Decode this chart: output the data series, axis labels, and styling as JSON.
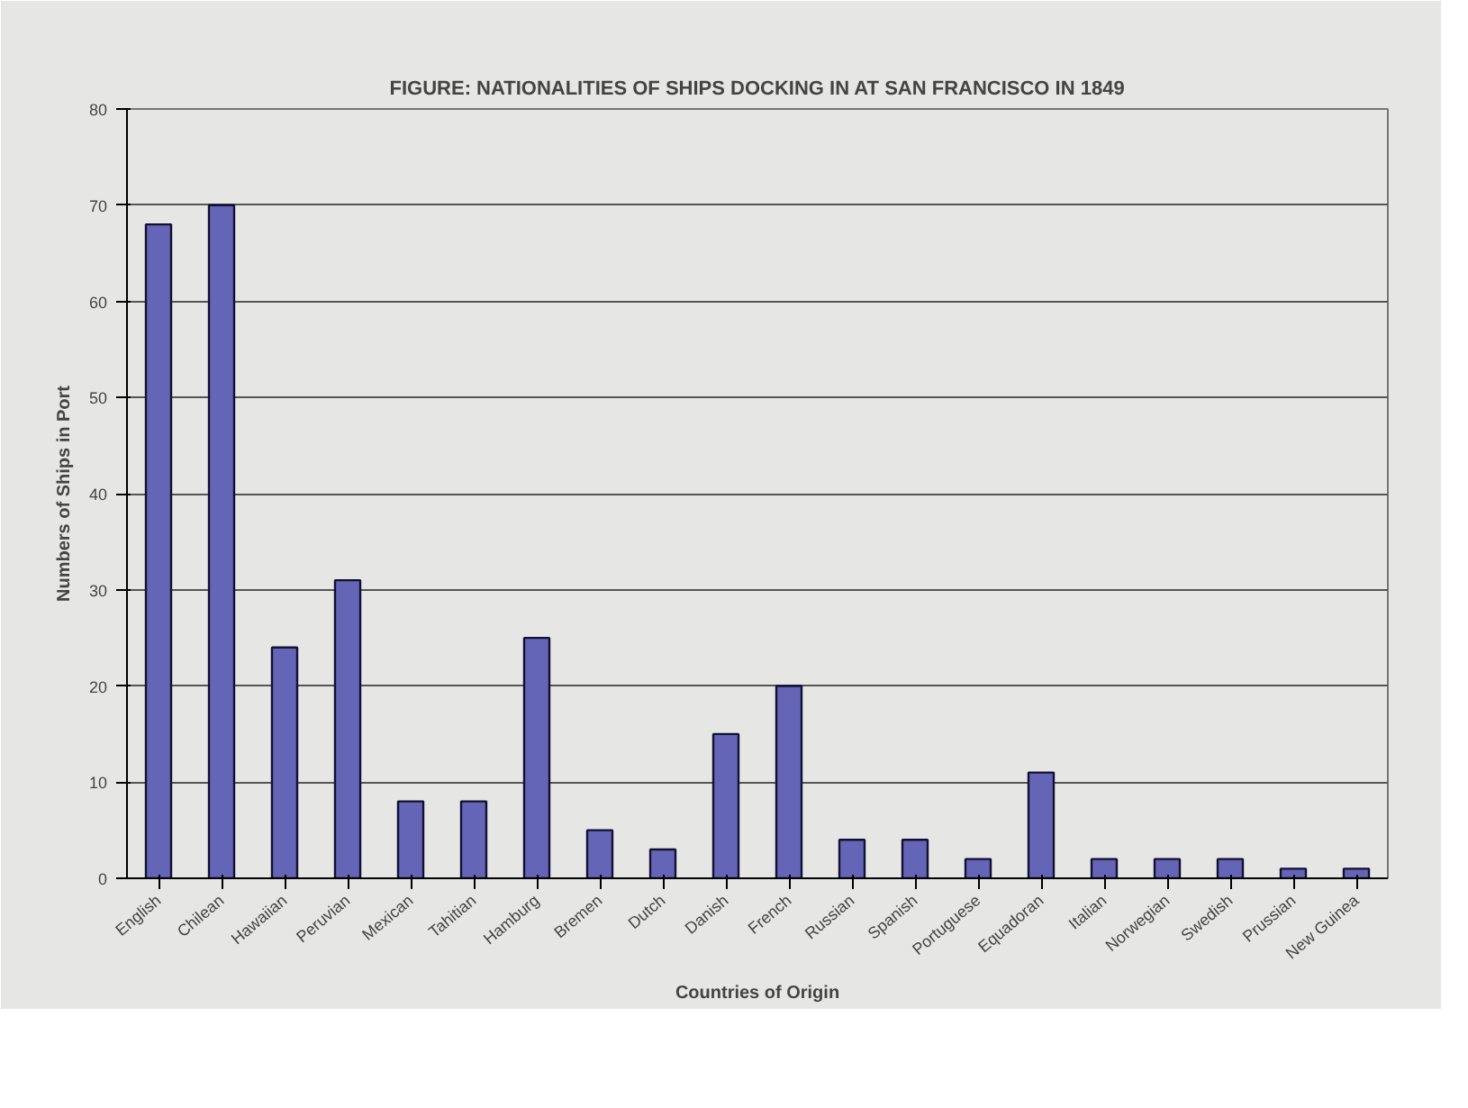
{
  "chart_data": {
    "type": "bar",
    "title": "FIGURE: NATIONALITIES OF SHIPS DOCKING IN AT SAN FRANCISCO IN 1849",
    "xlabel": "Countries of Origin",
    "ylabel": "Numbers of Ships in Port",
    "categories": [
      "English",
      "Chilean",
      "Hawaiian",
      "Peruvian",
      "Mexican",
      "Tahitian",
      "Hamburg",
      "Bremen",
      "Dutch",
      "Danish",
      "French",
      "Russian",
      "Spanish",
      "Portuguese",
      "Equadoran",
      "Italian",
      "Norwegian",
      "Swedish",
      "Prussian",
      "New Guinea"
    ],
    "values": [
      68,
      70,
      24,
      31,
      8,
      8,
      25,
      5,
      3,
      15,
      20,
      4,
      4,
      2,
      11,
      2,
      2,
      2,
      1,
      1
    ],
    "color": "#6565b8",
    "ylim": [
      0,
      80
    ],
    "yticks": [
      0,
      10,
      20,
      30,
      40,
      50,
      60,
      70,
      80
    ],
    "grid": "y"
  }
}
